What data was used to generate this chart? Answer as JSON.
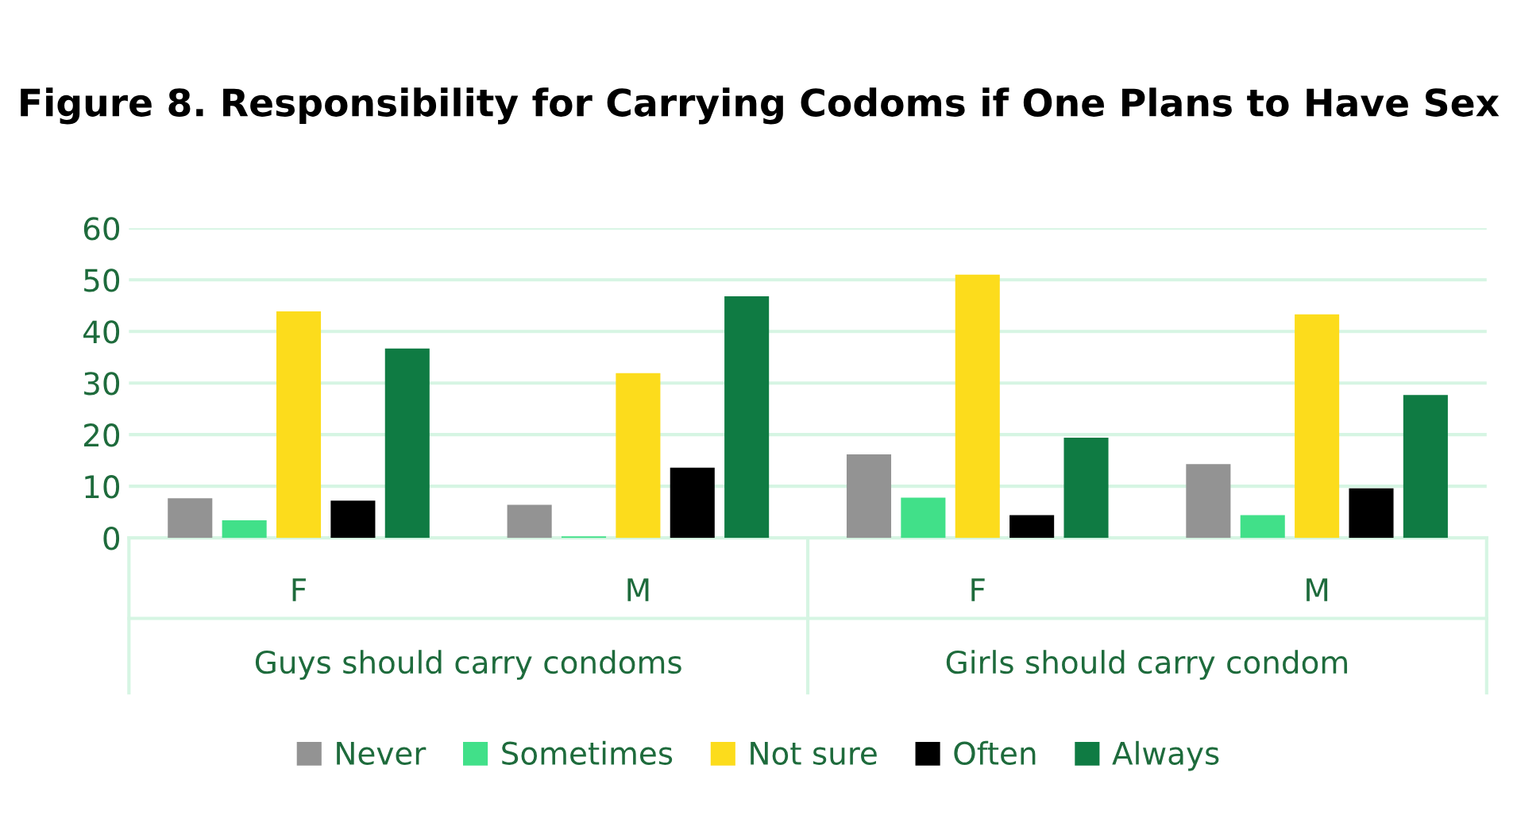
{
  "chart_data": {
    "type": "bar",
    "title": "Figure 8. Responsibility for Carrying Codoms if One Plans to Have Sex",
    "categories": [
      "F",
      "M",
      "F",
      "M"
    ],
    "annotations": [
      "Guys should carry condoms",
      "Girls should carry condom"
    ],
    "series": [
      {
        "name": "Never",
        "color": "#939393",
        "values": [
          7.7,
          6.4,
          16.2,
          14.3
        ]
      },
      {
        "name": "Sometimes",
        "color": "#41e089",
        "values": [
          3.4,
          0.3,
          7.8,
          4.4
        ]
      },
      {
        "name": "Not sure",
        "color": "#fcdc1c",
        "values": [
          43.9,
          31.9,
          51.0,
          43.3
        ]
      },
      {
        "name": "Often",
        "color": "#000000",
        "values": [
          7.2,
          13.6,
          4.4,
          9.6
        ]
      },
      {
        "name": "Always",
        "color": "#0f7b43",
        "values": [
          36.7,
          46.8,
          19.4,
          27.7
        ]
      }
    ],
    "ylim": [
      0,
      60
    ],
    "yticks": [
      0,
      10,
      20,
      30,
      40,
      50,
      60
    ],
    "grid": "y",
    "legend": "bottom"
  }
}
